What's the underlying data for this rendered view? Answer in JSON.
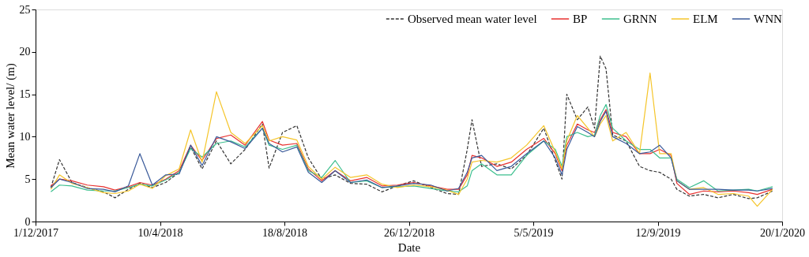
{
  "chart_data": {
    "type": "line",
    "xlabel": "Date",
    "ylabel": "Mean water level/ (m)",
    "x": [
      "2017-12-17",
      "2017-12-26",
      "2018-01-08",
      "2018-01-24",
      "2018-02-10",
      "2018-02-22",
      "2018-03-08",
      "2018-03-20",
      "2018-04-02",
      "2018-04-16",
      "2018-04-30",
      "2018-05-12",
      "2018-05-24",
      "2018-06-08",
      "2018-06-23",
      "2018-07-08",
      "2018-07-26",
      "2018-08-02",
      "2018-08-16",
      "2018-08-31",
      "2018-09-12",
      "2018-09-26",
      "2018-10-10",
      "2018-10-26",
      "2018-11-12",
      "2018-11-28",
      "2018-12-14",
      "2018-12-31",
      "2019-01-18",
      "2019-02-04",
      "2019-02-16",
      "2019-02-25",
      "2019-03-02",
      "2019-03-12",
      "2019-03-28",
      "2019-04-12",
      "2019-04-28",
      "2019-05-16",
      "2019-05-28",
      "2019-06-04",
      "2019-06-09",
      "2019-06-20",
      "2019-07-01",
      "2019-07-08",
      "2019-07-14",
      "2019-07-20",
      "2019-07-27",
      "2019-08-10",
      "2019-08-24",
      "2019-09-04",
      "2019-09-14",
      "2019-09-26",
      "2019-10-02",
      "2019-10-15",
      "2019-10-30",
      "2019-11-14",
      "2019-11-30",
      "2019-12-16",
      "2019-12-25",
      "2020-01-10"
    ],
    "series": [
      {
        "name": "Observed mean water level",
        "color": "#333333",
        "line_style": "dashed",
        "values": [
          4.0,
          7.3,
          4.6,
          4.0,
          3.5,
          2.8,
          3.8,
          4.5,
          4.0,
          4.6,
          5.8,
          8.8,
          6.2,
          9.5,
          6.8,
          8.5,
          11.5,
          6.3,
          10.5,
          11.3,
          7.5,
          5.0,
          5.5,
          4.5,
          4.4,
          3.5,
          4.2,
          4.8,
          4.0,
          3.3,
          3.2,
          8.5,
          12.0,
          6.5,
          6.8,
          6.2,
          7.8,
          11.0,
          7.2,
          5.0,
          15.0,
          12.0,
          13.5,
          11.0,
          19.5,
          18.0,
          10.2,
          9.5,
          6.5,
          6.0,
          5.8,
          5.0,
          3.8,
          3.0,
          3.2,
          2.8,
          3.2,
          2.7,
          2.8,
          3.6
        ]
      },
      {
        "name": "BP",
        "color": "#e8312f",
        "line_style": "solid",
        "values": [
          4.2,
          5.0,
          4.8,
          4.3,
          4.1,
          3.7,
          4.1,
          4.6,
          4.3,
          5.0,
          6.0,
          9.0,
          7.2,
          9.8,
          10.2,
          9.0,
          11.8,
          9.6,
          9.0,
          9.2,
          6.2,
          4.8,
          6.0,
          4.8,
          5.2,
          4.2,
          4.3,
          4.6,
          4.2,
          3.8,
          3.8,
          5.5,
          7.8,
          7.5,
          6.5,
          7.0,
          8.5,
          9.8,
          8.0,
          6.0,
          9.0,
          11.5,
          10.8,
          10.5,
          12.0,
          13.2,
          10.5,
          10.0,
          8.0,
          8.0,
          8.5,
          7.8,
          4.5,
          3.2,
          3.6,
          3.5,
          3.6,
          3.4,
          3.2,
          3.8
        ]
      },
      {
        "name": "GRNN",
        "color": "#3cbf8e",
        "line_style": "solid",
        "values": [
          3.5,
          4.3,
          4.2,
          3.7,
          3.6,
          3.6,
          4.0,
          4.4,
          4.2,
          4.9,
          5.8,
          8.6,
          7.6,
          9.2,
          9.5,
          8.8,
          11.0,
          9.0,
          8.5,
          9.0,
          6.0,
          5.2,
          7.2,
          4.6,
          4.8,
          4.0,
          4.1,
          4.2,
          3.9,
          3.6,
          3.5,
          4.2,
          6.0,
          6.8,
          5.5,
          5.5,
          7.8,
          9.5,
          8.5,
          6.5,
          10.0,
          10.5,
          10.0,
          10.2,
          12.5,
          13.8,
          11.0,
          9.5,
          8.5,
          8.5,
          7.5,
          7.5,
          5.0,
          4.0,
          4.8,
          3.6,
          3.7,
          3.8,
          3.6,
          4.1
        ]
      },
      {
        "name": "ELM",
        "color": "#f5c52a",
        "line_style": "solid",
        "values": [
          3.8,
          5.5,
          4.5,
          4.0,
          3.4,
          3.3,
          3.6,
          4.4,
          3.9,
          5.4,
          6.2,
          10.8,
          7.0,
          15.3,
          10.5,
          9.2,
          11.3,
          9.5,
          10.0,
          9.6,
          6.5,
          5.0,
          6.4,
          5.2,
          5.5,
          4.4,
          4.0,
          4.3,
          4.1,
          3.7,
          3.2,
          5.0,
          7.0,
          7.2,
          7.0,
          7.5,
          9.0,
          11.3,
          8.2,
          6.2,
          9.5,
          12.5,
          11.0,
          10.0,
          11.5,
          12.5,
          9.5,
          10.5,
          8.0,
          17.5,
          8.0,
          8.0,
          4.8,
          3.8,
          4.0,
          3.2,
          3.3,
          3.0,
          1.8,
          3.8
        ]
      },
      {
        "name": "WNN",
        "color": "#3a5a9a",
        "line_style": "solid",
        "values": [
          4.0,
          5.0,
          4.6,
          3.9,
          3.8,
          3.5,
          4.2,
          8.0,
          4.3,
          5.5,
          5.6,
          9.0,
          6.6,
          10.0,
          9.4,
          8.6,
          11.0,
          9.2,
          8.2,
          8.8,
          5.8,
          4.6,
          6.0,
          4.6,
          4.9,
          4.0,
          4.2,
          4.5,
          4.3,
          3.6,
          3.9,
          5.8,
          7.5,
          7.8,
          6.0,
          6.5,
          8.0,
          9.5,
          7.5,
          5.5,
          8.5,
          11.2,
          10.5,
          10.0,
          11.8,
          13.0,
          10.0,
          9.2,
          8.0,
          8.2,
          9.0,
          7.5,
          4.8,
          3.8,
          3.8,
          3.8,
          3.7,
          3.7,
          3.6,
          3.9
        ]
      }
    ],
    "xlim": [
      "2017-12-01",
      "2020-01-20"
    ],
    "xticks": [
      {
        "value": "2017-12-01",
        "label": "1/12/2017"
      },
      {
        "value": "2018-04-10",
        "label": "10/4/2018"
      },
      {
        "value": "2018-08-18",
        "label": "18/8/2018"
      },
      {
        "value": "2018-12-26",
        "label": "26/12/2018"
      },
      {
        "value": "2019-05-05",
        "label": "5/5/2019"
      },
      {
        "value": "2019-09-12",
        "label": "12/9/2019"
      },
      {
        "value": "2020-01-20",
        "label": "20/1/2020"
      }
    ],
    "ylim": [
      0,
      25
    ],
    "yticks": [
      0,
      5,
      10,
      15,
      20,
      25
    ],
    "grid": false,
    "legend": "top right"
  }
}
